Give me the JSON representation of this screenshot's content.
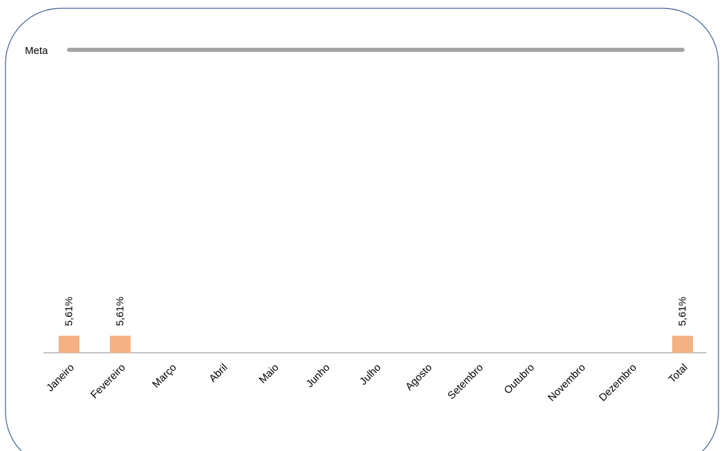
{
  "chart_data": {
    "type": "bar",
    "categories": [
      "Janeiro",
      "Fevereiro",
      "Março",
      "Abril",
      "Maio",
      "Junho",
      "Julho",
      "Agosto",
      "Setembro",
      "Outubro",
      "Novembro",
      "Dezembro",
      "Total"
    ],
    "values": [
      5.61,
      5.61,
      null,
      null,
      null,
      null,
      null,
      null,
      null,
      null,
      null,
      null,
      5.61
    ],
    "data_labels": [
      "5,61%",
      "5,61%",
      "",
      "",
      "",
      "",
      "",
      "",
      "",
      "",
      "",
      "",
      "5,61%"
    ],
    "ylim": [
      0,
      100
    ],
    "bar_color": "#F4B183",
    "grid": false,
    "target_line": {
      "label": "Meta",
      "value": 100,
      "color": "#A6A6A6"
    }
  }
}
